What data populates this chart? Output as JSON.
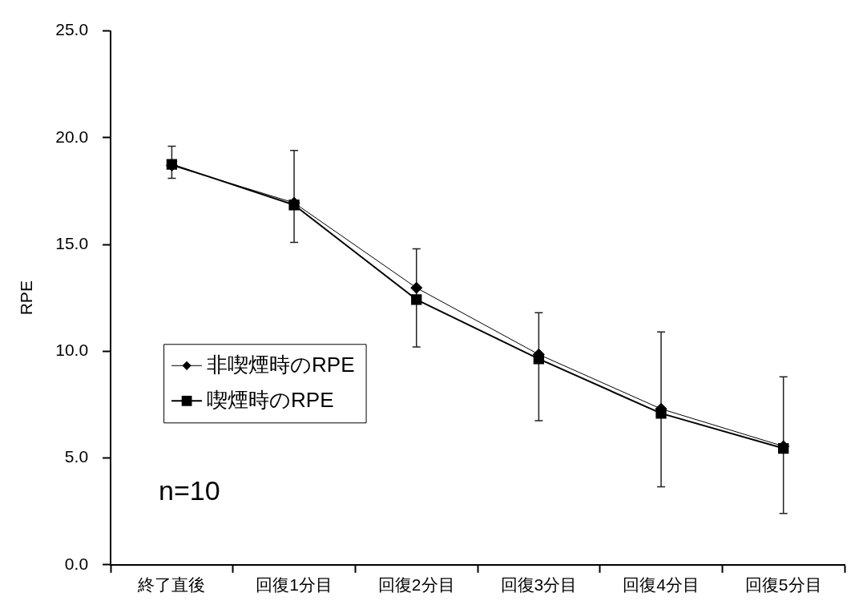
{
  "chart_data": {
    "type": "line",
    "ylabel": "RPE",
    "categories": [
      "終了直後",
      "回復1分目",
      "回復2分目",
      "回復3分目",
      "回復4分目",
      "回復5分目"
    ],
    "series": [
      {
        "name": "非喫煙時のRPE",
        "color": "#000000",
        "marker": "diamond",
        "values": [
          18.7,
          16.95,
          12.97,
          9.85,
          7.3,
          5.55
        ]
      },
      {
        "name": "喫煙時のRPE",
        "color": "#000000",
        "marker": "square",
        "values": [
          18.75,
          16.85,
          12.42,
          9.64,
          7.09,
          5.45
        ],
        "errors": [
          [
            18.1,
            19.6
          ],
          [
            15.1,
            19.4
          ],
          [
            10.2,
            14.8
          ],
          [
            6.75,
            11.8
          ],
          [
            3.65,
            10.9
          ],
          [
            2.4,
            8.8
          ]
        ]
      }
    ],
    "ylim": [
      0,
      25
    ],
    "yticks": [
      {
        "value": 0,
        "label": "0.0"
      },
      {
        "value": 5,
        "label": "5.0"
      },
      {
        "value": 10,
        "label": "10.0"
      },
      {
        "value": 15,
        "label": "15.0"
      },
      {
        "value": 20,
        "label": "20.0"
      },
      {
        "value": 25,
        "label": "25.0"
      }
    ],
    "grid": false,
    "legend": "left",
    "line_style": "solid",
    "annotations": [
      "n=10"
    ]
  }
}
